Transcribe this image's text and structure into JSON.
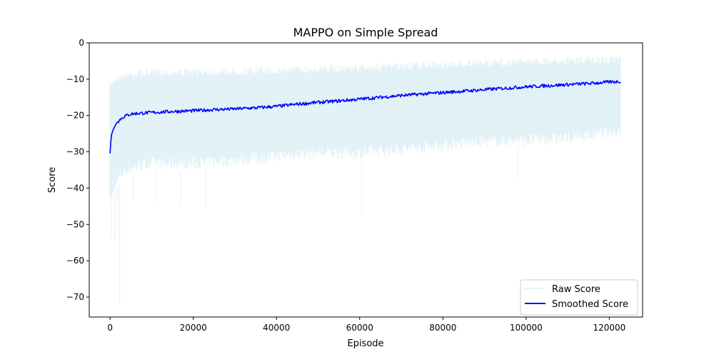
{
  "chart_data": {
    "type": "line",
    "title": "MAPPO on Simple Spread",
    "xlabel": "Episode",
    "ylabel": "Score",
    "xlim": [
      -5000,
      128000
    ],
    "ylim": [
      -75.5,
      0
    ],
    "xticks": [
      0,
      20000,
      40000,
      60000,
      80000,
      100000,
      120000
    ],
    "xtick_labels": [
      "0",
      "20000",
      "40000",
      "60000",
      "80000",
      "100000",
      "120000"
    ],
    "yticks": [
      0,
      -10,
      -20,
      -30,
      -40,
      -50,
      -60,
      -70
    ],
    "ytick_labels": [
      "0",
      "−10",
      "−20",
      "−30",
      "−40",
      "−50",
      "−60",
      "−70"
    ],
    "grid": false,
    "legend_position": "bottom-right",
    "colors": {
      "raw": "#add8e6",
      "smoothed": "#0000ff"
    },
    "series": [
      {
        "name": "Raw Score",
        "style": "band",
        "opacity": 0.3,
        "x": [
          0,
          1000,
          2500,
          5000,
          10000,
          20000,
          30000,
          40000,
          50000,
          60000,
          70000,
          80000,
          90000,
          100000,
          110000,
          122800
        ],
        "upper": [
          -11,
          -9,
          -8,
          -7.5,
          -7,
          -7,
          -6.8,
          -6.5,
          -6,
          -5.8,
          -5.5,
          -5,
          -4.5,
          -4,
          -3.8,
          -3.5
        ],
        "lower": [
          -46,
          -42,
          -38,
          -36,
          -35,
          -35,
          -34,
          -33,
          -32,
          -32,
          -31,
          -30,
          -29,
          -28.5,
          -28,
          -26
        ]
      },
      {
        "name": "Smoothed Score",
        "style": "line",
        "x": [
          0,
          300,
          800,
          1500,
          2500,
          3500,
          5000,
          7000,
          10000,
          15000,
          20000,
          25000,
          30000,
          35000,
          40000,
          45000,
          50000,
          55000,
          60000,
          65000,
          70000,
          75000,
          80000,
          85000,
          90000,
          95000,
          100000,
          105000,
          110000,
          115000,
          120000,
          122800
        ],
        "values": [
          -30.5,
          -25.5,
          -23.8,
          -22.2,
          -21,
          -20.2,
          -19.6,
          -19.4,
          -19.2,
          -18.9,
          -18.7,
          -18.4,
          -18.2,
          -17.9,
          -17.5,
          -16.9,
          -16.4,
          -16,
          -15.5,
          -15,
          -14.5,
          -14.1,
          -13.7,
          -13.3,
          -12.9,
          -12.5,
          -12.1,
          -11.8,
          -11.5,
          -11.2,
          -10.8,
          -10.6
        ]
      }
    ],
    "raw_spikes": [
      {
        "x": 300,
        "value": -54
      },
      {
        "x": 1200,
        "value": -55
      },
      {
        "x": 1800,
        "value": -47
      },
      {
        "x": 2300,
        "value": -72
      },
      {
        "x": 5500,
        "value": -43
      },
      {
        "x": 11000,
        "value": -44
      },
      {
        "x": 17000,
        "value": -44.5
      },
      {
        "x": 23000,
        "value": -45
      },
      {
        "x": 60500,
        "value": -47
      },
      {
        "x": 98000,
        "value": -37.5
      }
    ]
  }
}
